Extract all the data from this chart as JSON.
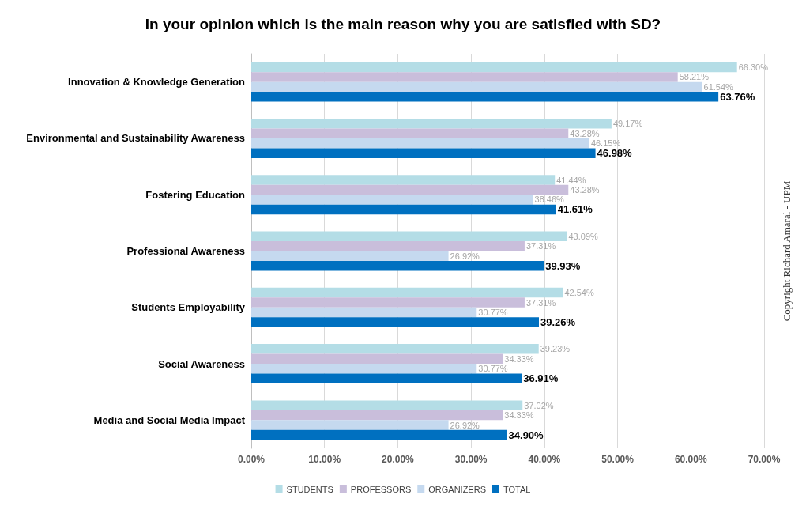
{
  "chart_data": {
    "type": "bar",
    "orientation": "horizontal",
    "title": "In your opinion which is the main reason why you are satisfied with SD?",
    "categories": [
      "Innovation & Knowledge Generation",
      "Environmental and Sustainability Awareness",
      "Fostering Education",
      "Professional Awareness",
      "Students Employability",
      "Social Awareness",
      "Media and Social Media Impact"
    ],
    "series": [
      {
        "name": "STUDENTS",
        "color": "#b4dde6",
        "values": [
          66.3,
          49.17,
          41.44,
          43.09,
          42.54,
          39.23,
          37.02
        ],
        "value_labels": [
          "66.30%",
          "49.17%",
          "41.44%",
          "43.09%",
          "42.54%",
          "39.23%",
          "37.02%"
        ]
      },
      {
        "name": "PROFESSORS",
        "color": "#c9bedb",
        "values": [
          58.21,
          43.28,
          43.28,
          37.31,
          37.31,
          34.33,
          34.33
        ],
        "value_labels": [
          "58.21%",
          "43.28%",
          "43.28%",
          "37.31%",
          "37.31%",
          "34.33%",
          "34.33%"
        ]
      },
      {
        "name": "ORGANIZERS",
        "color": "#c5d9ef",
        "values": [
          61.54,
          46.15,
          38.46,
          26.92,
          30.77,
          30.77,
          26.92
        ],
        "value_labels": [
          "61.54%",
          "46.15%",
          "38.46%",
          "26.92%",
          "30.77%",
          "30.77%",
          "26.92%"
        ]
      },
      {
        "name": "TOTAL",
        "color": "#0070c0",
        "values": [
          63.76,
          46.98,
          41.61,
          39.93,
          39.26,
          36.91,
          34.9
        ],
        "value_labels": [
          "63.76%",
          "46.98%",
          "41.61%",
          "39.93%",
          "39.26%",
          "36.91%",
          "34.90%"
        ]
      }
    ],
    "xlim": [
      0,
      70
    ],
    "xticks": [
      {
        "value": 0,
        "label": "0.00%"
      },
      {
        "value": 10,
        "label": "10.00%"
      },
      {
        "value": 20,
        "label": "20.00%"
      },
      {
        "value": 30,
        "label": "30.00%"
      },
      {
        "value": 40,
        "label": "40.00%"
      },
      {
        "value": 50,
        "label": "50.00%"
      },
      {
        "value": 60,
        "label": "60.00%"
      },
      {
        "value": 70,
        "label": "70.00%"
      }
    ],
    "grid": "x",
    "legend": "bottom",
    "annotations": [
      "Copyright Richard Amaral - UPM"
    ]
  }
}
